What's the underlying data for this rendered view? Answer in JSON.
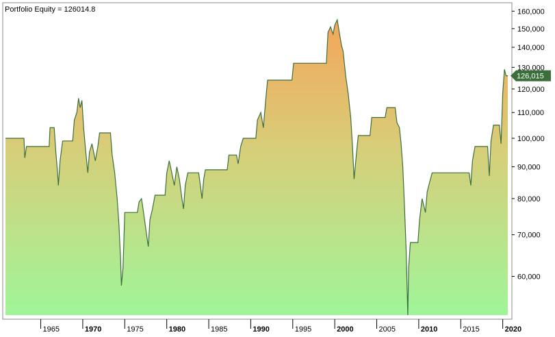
{
  "chart_data": {
    "type": "area",
    "title": "Portfolio Equity = 126014.8",
    "xlabel": "",
    "ylabel": "",
    "y_scale": "log",
    "ylim": [
      52000,
      163000
    ],
    "xlim": [
      1960.8,
      2020.6
    ],
    "grid": false,
    "y_ticks": [
      {
        "value": 60000,
        "label": "60,000"
      },
      {
        "value": 70000,
        "label": "70,000"
      },
      {
        "value": 80000,
        "label": "80,000"
      },
      {
        "value": 90000,
        "label": "90,000"
      },
      {
        "value": 100000,
        "label": "100,000"
      },
      {
        "value": 110000,
        "label": "110,000"
      },
      {
        "value": 120000,
        "label": "120,000"
      },
      {
        "value": 130000,
        "label": "130,000"
      },
      {
        "value": 140000,
        "label": "140,000"
      },
      {
        "value": 150000,
        "label": "150,000"
      },
      {
        "value": 160000,
        "label": "160,000"
      }
    ],
    "x_ticks": [
      {
        "value": 1965,
        "label": "1965",
        "bold": false
      },
      {
        "value": 1970,
        "label": "1970",
        "bold": true
      },
      {
        "value": 1975,
        "label": "1975",
        "bold": false
      },
      {
        "value": 1980,
        "label": "1980",
        "bold": true
      },
      {
        "value": 1985,
        "label": "1985",
        "bold": false
      },
      {
        "value": 1990,
        "label": "1990",
        "bold": true
      },
      {
        "value": 1995,
        "label": "1995",
        "bold": false
      },
      {
        "value": 2000,
        "label": "2000",
        "bold": true
      },
      {
        "value": 2005,
        "label": "2005",
        "bold": false
      },
      {
        "value": 2010,
        "label": "2010",
        "bold": true
      },
      {
        "value": 2015,
        "label": "2015",
        "bold": false
      },
      {
        "value": 2020,
        "label": "2020",
        "bold": true
      }
    ],
    "last_value_label": "126,015",
    "last_value": 126015,
    "colors": {
      "line": "#3c6e3c",
      "fill_top": "#f5a55a",
      "fill_mid": "#d6cf7a",
      "fill_bottom": "#a0f599",
      "badge": "#3c6e3c",
      "frame": "#888888"
    },
    "series": [
      {
        "points": [
          [
            1960.8,
            100000
          ],
          [
            1963.0,
            100000
          ],
          [
            1963.1,
            93000
          ],
          [
            1963.3,
            97000
          ],
          [
            1963.5,
            97000
          ],
          [
            1966.0,
            97000
          ],
          [
            1966.1,
            104000
          ],
          [
            1966.6,
            104000
          ],
          [
            1966.8,
            95000
          ],
          [
            1967.0,
            88000
          ],
          [
            1967.1,
            84000
          ],
          [
            1967.3,
            92000
          ],
          [
            1967.6,
            99000
          ],
          [
            1968.8,
            99000
          ],
          [
            1969.0,
            107000
          ],
          [
            1969.3,
            110000
          ],
          [
            1969.5,
            116000
          ],
          [
            1969.7,
            112000
          ],
          [
            1969.9,
            115000
          ],
          [
            1970.1,
            104000
          ],
          [
            1970.3,
            97000
          ],
          [
            1970.6,
            88000
          ],
          [
            1970.8,
            95000
          ],
          [
            1971.1,
            98000
          ],
          [
            1971.5,
            92000
          ],
          [
            1971.8,
            97000
          ],
          [
            1972.0,
            102000
          ],
          [
            1973.3,
            102000
          ],
          [
            1973.5,
            94000
          ],
          [
            1973.8,
            88000
          ],
          [
            1974.1,
            80000
          ],
          [
            1974.3,
            73000
          ],
          [
            1974.5,
            64000
          ],
          [
            1974.6,
            58000
          ],
          [
            1974.8,
            62000
          ],
          [
            1975.0,
            76000
          ],
          [
            1976.5,
            76000
          ],
          [
            1976.7,
            79000
          ],
          [
            1977.0,
            80000
          ],
          [
            1977.3,
            75000
          ],
          [
            1977.6,
            70000
          ],
          [
            1977.8,
            67000
          ],
          [
            1978.0,
            74000
          ],
          [
            1978.3,
            77000
          ],
          [
            1978.6,
            81000
          ],
          [
            1979.8,
            81000
          ],
          [
            1980.0,
            88000
          ],
          [
            1980.3,
            92000
          ],
          [
            1980.6,
            88000
          ],
          [
            1980.9,
            84000
          ],
          [
            1981.2,
            90000
          ],
          [
            1981.5,
            86000
          ],
          [
            1981.8,
            80000
          ],
          [
            1982.0,
            77000
          ],
          [
            1982.2,
            84000
          ],
          [
            1982.5,
            88000
          ],
          [
            1983.8,
            88000
          ],
          [
            1984.0,
            84000
          ],
          [
            1984.2,
            80000
          ],
          [
            1984.4,
            86000
          ],
          [
            1984.6,
            89000
          ],
          [
            1987.2,
            89000
          ],
          [
            1987.4,
            94000
          ],
          [
            1988.3,
            94000
          ],
          [
            1988.5,
            91000
          ],
          [
            1988.8,
            97000
          ],
          [
            1989.1,
            100000
          ],
          [
            1990.6,
            100000
          ],
          [
            1990.8,
            107000
          ],
          [
            1991.2,
            110000
          ],
          [
            1991.5,
            104000
          ],
          [
            1991.8,
            116000
          ],
          [
            1992.0,
            124000
          ],
          [
            1994.9,
            124000
          ],
          [
            1995.1,
            132000
          ],
          [
            1999.0,
            132000
          ],
          [
            1999.2,
            148000
          ],
          [
            1999.5,
            151000
          ],
          [
            1999.8,
            147000
          ],
          [
            2000.0,
            152000
          ],
          [
            2000.3,
            155000
          ],
          [
            2000.5,
            149000
          ],
          [
            2000.8,
            141000
          ],
          [
            2001.0,
            138000
          ],
          [
            2001.3,
            126000
          ],
          [
            2001.6,
            118000
          ],
          [
            2001.9,
            108000
          ],
          [
            2002.1,
            98000
          ],
          [
            2002.3,
            86000
          ],
          [
            2002.6,
            95000
          ],
          [
            2002.8,
            101000
          ],
          [
            2004.2,
            101000
          ],
          [
            2004.4,
            108000
          ],
          [
            2006.0,
            108000
          ],
          [
            2006.2,
            112000
          ],
          [
            2007.2,
            112000
          ],
          [
            2007.4,
            106000
          ],
          [
            2007.7,
            104000
          ],
          [
            2007.9,
            98000
          ],
          [
            2008.1,
            90000
          ],
          [
            2008.3,
            78000
          ],
          [
            2008.5,
            66000
          ],
          [
            2008.7,
            52000
          ],
          [
            2008.8,
            62000
          ],
          [
            2009.0,
            68000
          ],
          [
            2009.9,
            68000
          ],
          [
            2010.1,
            74000
          ],
          [
            2010.4,
            80000
          ],
          [
            2010.8,
            76000
          ],
          [
            2011.0,
            82000
          ],
          [
            2011.3,
            85000
          ],
          [
            2011.6,
            88000
          ],
          [
            2016.0,
            88000
          ],
          [
            2016.2,
            84000
          ],
          [
            2016.4,
            92000
          ],
          [
            2016.7,
            97000
          ],
          [
            2018.2,
            97000
          ],
          [
            2018.4,
            87000
          ],
          [
            2018.6,
            99000
          ],
          [
            2018.9,
            105000
          ],
          [
            2019.6,
            105000
          ],
          [
            2019.8,
            98000
          ],
          [
            2020.0,
            118000
          ],
          [
            2020.2,
            129000
          ],
          [
            2020.4,
            126015
          ],
          [
            2020.6,
            126015
          ]
        ]
      }
    ]
  }
}
